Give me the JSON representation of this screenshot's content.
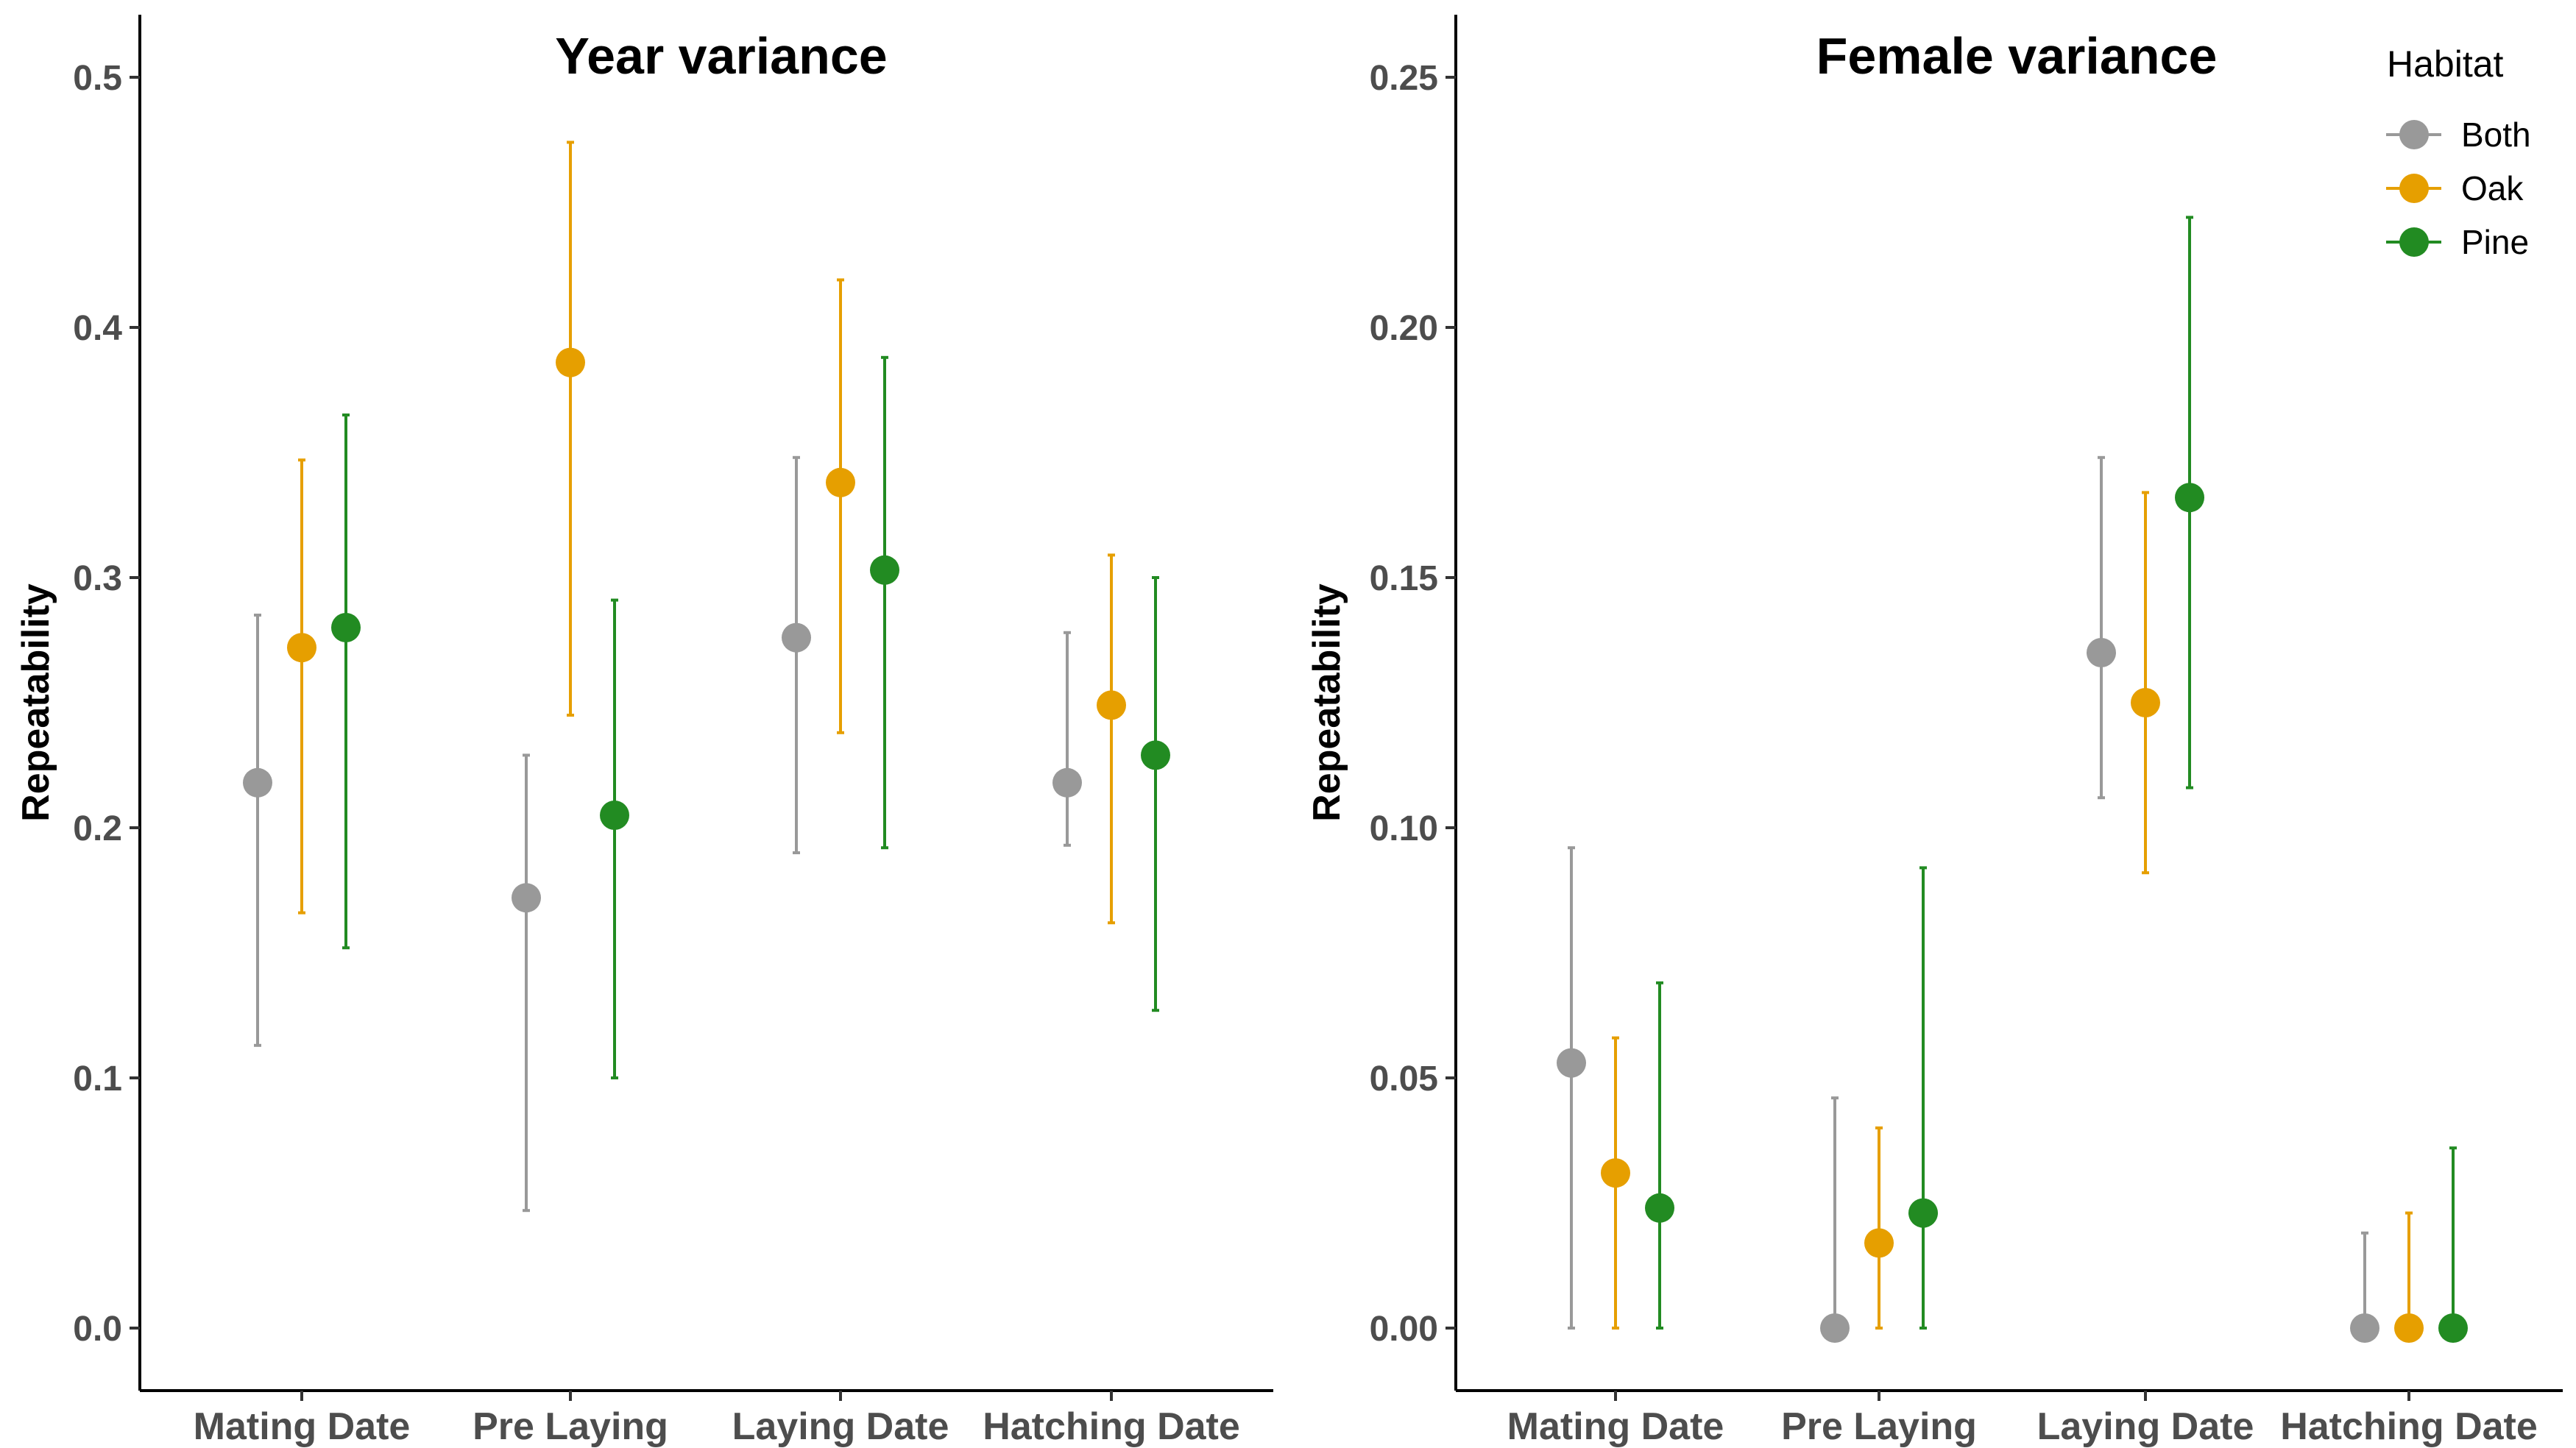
{
  "chart_data": [
    {
      "type": "scatter",
      "title": "Year variance",
      "ylabel": "Repeatability",
      "xlabel": "",
      "categories": [
        "Mating Date",
        "Pre Laying",
        "Laying Date",
        "Hatching Date"
      ],
      "ylim": [
        -0.025,
        0.525
      ],
      "yticks": [
        0.0,
        0.1,
        0.2,
        0.3,
        0.4,
        0.5
      ],
      "ytick_labels": [
        "0.0",
        "0.1",
        "0.2",
        "0.3",
        "0.4",
        "0.5"
      ],
      "grid": false,
      "series": [
        {
          "name": "Both",
          "color": "#999999",
          "values": [
            0.218,
            0.172,
            0.276,
            0.218
          ],
          "lower": [
            0.113,
            0.047,
            0.19,
            0.193
          ],
          "upper": [
            0.285,
            0.229,
            0.348,
            0.278
          ]
        },
        {
          "name": "Oak",
          "color": "#E69F00",
          "values": [
            0.272,
            0.386,
            0.338,
            0.249
          ],
          "lower": [
            0.166,
            0.245,
            0.238,
            0.162
          ],
          "upper": [
            0.347,
            0.474,
            0.419,
            0.309
          ]
        },
        {
          "name": "Pine",
          "color": "#228B22",
          "values": [
            0.28,
            0.205,
            0.303,
            0.229
          ],
          "lower": [
            0.152,
            0.1,
            0.192,
            0.127
          ],
          "upper": [
            0.365,
            0.291,
            0.388,
            0.3
          ]
        }
      ]
    },
    {
      "type": "scatter",
      "title": "Female variance",
      "ylabel": "Repeatability",
      "xlabel": "",
      "categories": [
        "Mating Date",
        "Pre Laying",
        "Laying Date",
        "Hatching Date"
      ],
      "ylim": [
        -0.0125,
        0.2625
      ],
      "yticks": [
        0.0,
        0.05,
        0.1,
        0.15,
        0.2,
        0.25
      ],
      "ytick_labels": [
        "0.00",
        "0.05",
        "0.10",
        "0.15",
        "0.20",
        "0.25"
      ],
      "grid": false,
      "legend": {
        "title": "Habitat",
        "position": "top-right"
      },
      "series": [
        {
          "name": "Both",
          "color": "#999999",
          "values": [
            0.053,
            0.0,
            0.135,
            0.0
          ],
          "lower": [
            0.0,
            0.0,
            0.106,
            0.0
          ],
          "upper": [
            0.096,
            0.046,
            0.174,
            0.019
          ]
        },
        {
          "name": "Oak",
          "color": "#E69F00",
          "values": [
            0.031,
            0.017,
            0.125,
            0.0
          ],
          "lower": [
            0.0,
            0.0,
            0.091,
            0.0
          ],
          "upper": [
            0.058,
            0.04,
            0.167,
            0.023
          ]
        },
        {
          "name": "Pine",
          "color": "#228B22",
          "values": [
            0.024,
            0.023,
            0.166,
            0.0
          ],
          "lower": [
            0.0,
            0.0,
            0.108,
            0.0
          ],
          "upper": [
            0.069,
            0.092,
            0.222,
            0.036
          ]
        }
      ]
    }
  ]
}
